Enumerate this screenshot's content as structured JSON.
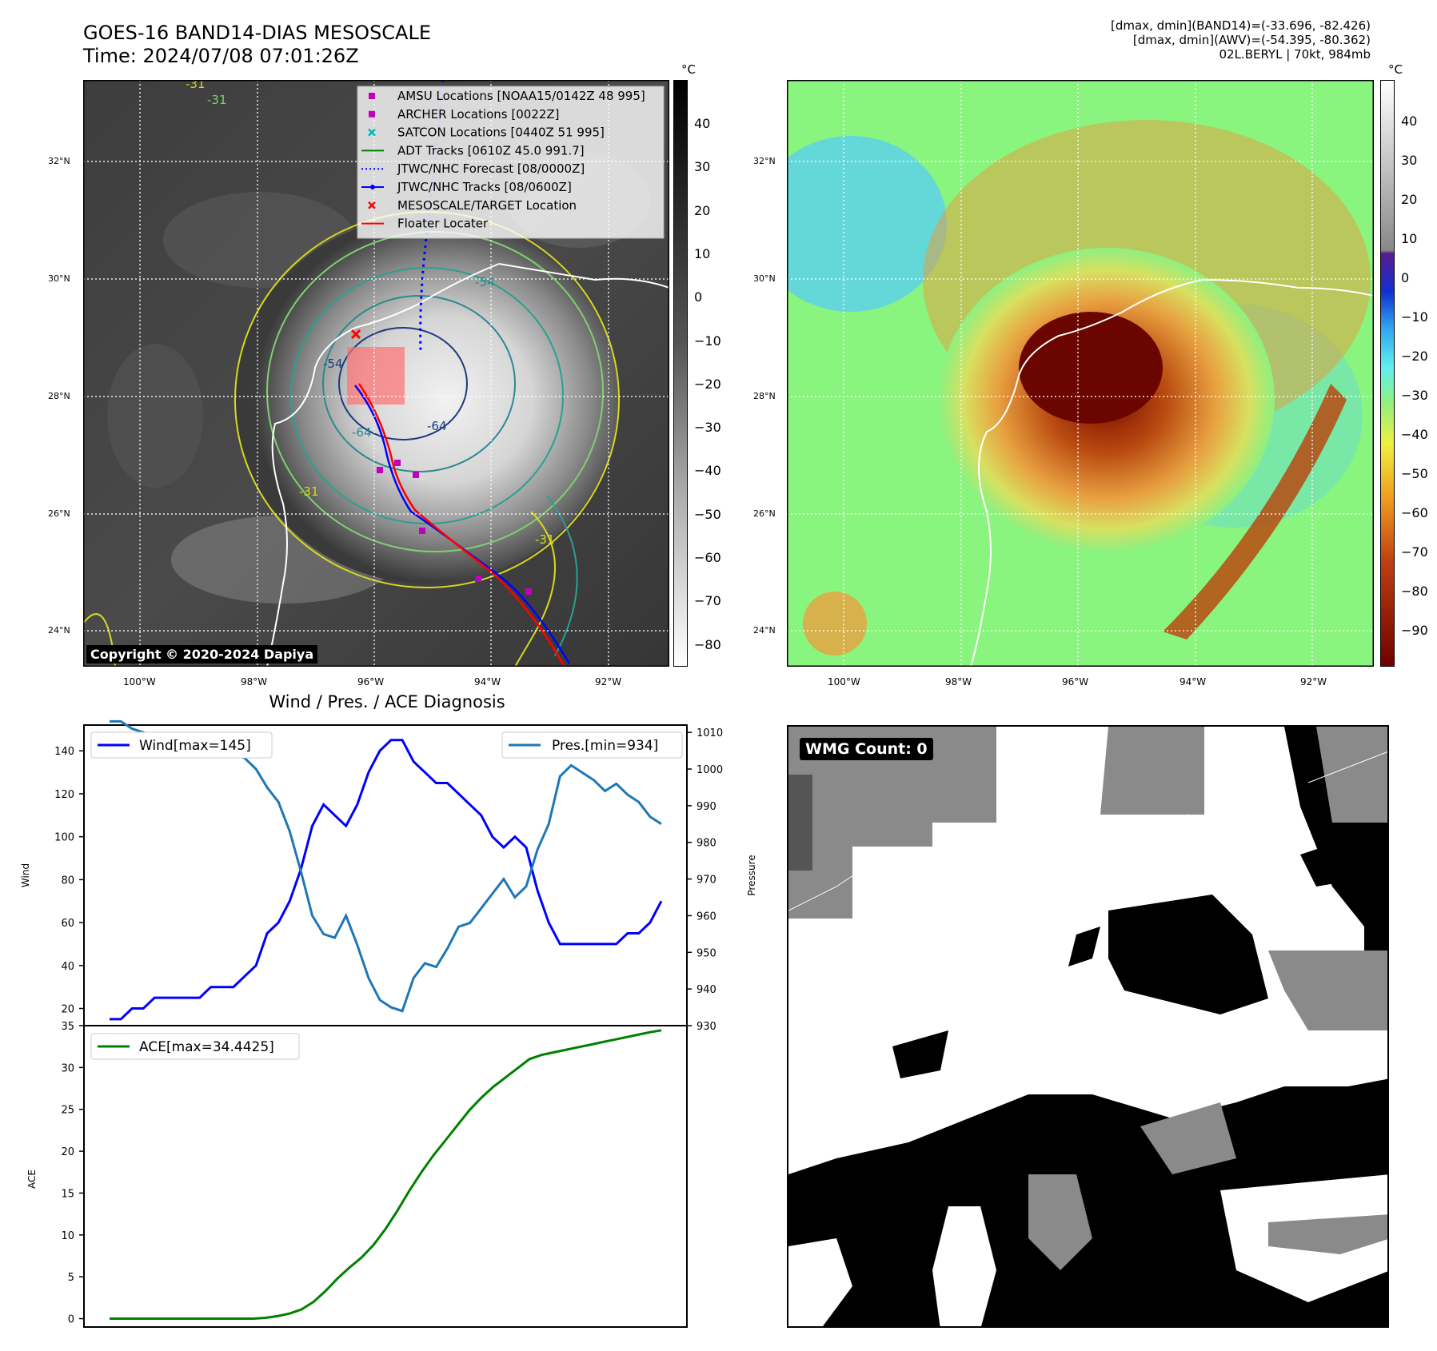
{
  "header": {
    "title_line1": "GOES-16 BAND14-DIAS MESOSCALE",
    "title_line2": "Time: 2024/07/08 07:01:26Z",
    "stats_line1": "[dmax, dmin](BAND14)=(-33.696, -82.426)",
    "stats_line2": "[dmax, dmin](AWV)=(-54.395, -80.362)",
    "stats_line3": "02L.BERYL | 70kt, 984mb"
  },
  "map_left": {
    "copyright": "Copyright © 2020-2024 Dapiya",
    "lat_labels": [
      "32°N",
      "30°N",
      "28°N",
      "26°N",
      "24°N"
    ],
    "lon_labels": [
      "100°W",
      "98°W",
      "96°W",
      "94°W",
      "92°W"
    ],
    "colorbar_unit": "°C",
    "colorbar_ticks": [
      "40",
      "30",
      "20",
      "10",
      "0",
      "−10",
      "−20",
      "−30",
      "−40",
      "−50",
      "−60",
      "−70",
      "−80"
    ],
    "contour_labels": [
      "-31",
      "-31",
      "-31",
      "-54",
      "-54",
      "-64",
      "-64",
      "-31"
    ],
    "legend": [
      {
        "label": "AMSU Locations [NOAA15/0142Z 48 995]",
        "color": "#c000c0",
        "marker": "square"
      },
      {
        "label": "ARCHER Locations [0022Z]",
        "color": "#c000c0",
        "marker": "square"
      },
      {
        "label": "SATCON Locations [0440Z 51 995]",
        "color": "#00b5b5",
        "marker": "x"
      },
      {
        "label": "ADT Tracks [0610Z 45.0 991.7]",
        "color": "#008000",
        "marker": "line"
      },
      {
        "label": "JTWC/NHC Forecast [08/0000Z]",
        "color": "#0000ff",
        "marker": "dotted"
      },
      {
        "label": "JTWC/NHC Tracks [08/0600Z]",
        "color": "#0000ff",
        "marker": "line-dot"
      },
      {
        "label": "MESOSCALE/TARGET Location",
        "color": "#ff0000",
        "marker": "x"
      },
      {
        "label": "Floater Locater",
        "color": "#ff0000",
        "marker": "line"
      }
    ]
  },
  "map_right": {
    "lat_labels": [
      "32°N",
      "30°N",
      "28°N",
      "26°N",
      "24°N"
    ],
    "lon_labels": [
      "100°W",
      "98°W",
      "96°W",
      "94°W",
      "92°W"
    ],
    "colorbar_unit": "°C",
    "colorbar_ticks": [
      "40",
      "30",
      "20",
      "10",
      "0",
      "−10",
      "−20",
      "−30",
      "−40",
      "−50",
      "−60",
      "−70",
      "−80",
      "−90"
    ]
  },
  "wmg": {
    "label": "WMG Count: 0"
  },
  "chart_data": [
    {
      "type": "line",
      "title": "Wind / Pres. / ACE Diagnosis",
      "ylabel": "Wind",
      "ylabel_right": "Pressure",
      "ylim": [
        12,
        152
      ],
      "ylim_right": [
        930,
        1012
      ],
      "yticks": [
        20,
        40,
        60,
        80,
        100,
        120,
        140
      ],
      "yticks_right": [
        930,
        940,
        950,
        960,
        970,
        980,
        990,
        1000,
        1010
      ],
      "series": [
        {
          "name": "Wind[max=145]",
          "color": "#0000ff",
          "axis": "left",
          "values": [
            15,
            15,
            20,
            20,
            25,
            25,
            25,
            25,
            25,
            30,
            30,
            30,
            35,
            40,
            55,
            60,
            70,
            85,
            105,
            115,
            110,
            105,
            115,
            130,
            140,
            145,
            145,
            135,
            130,
            125,
            125,
            120,
            115,
            110,
            100,
            95,
            100,
            95,
            75,
            60,
            50,
            50,
            50,
            50,
            50,
            50,
            55,
            55,
            60,
            70
          ]
        },
        {
          "name": "Pres.[min=934]",
          "color": "#1f77b4",
          "axis": "right",
          "values": [
            1013,
            1013,
            1011,
            1010,
            1009,
            1008,
            1007,
            1006,
            1006,
            1005,
            1004,
            1004,
            1003,
            1000,
            995,
            991,
            983,
            972,
            960,
            955,
            954,
            960,
            952,
            943,
            937,
            935,
            934,
            943,
            947,
            946,
            951,
            957,
            958,
            962,
            966,
            970,
            965,
            968,
            978,
            985,
            998,
            1001,
            999,
            997,
            994,
            996,
            993,
            991,
            987,
            985
          ]
        }
      ]
    },
    {
      "type": "line",
      "ylabel": "ACE",
      "ylim": [
        -1,
        35
      ],
      "yticks": [
        0,
        5,
        10,
        15,
        20,
        25,
        30,
        35
      ],
      "series": [
        {
          "name": "ACE[max=34.4425]",
          "color": "#008000",
          "values": [
            0,
            0,
            0,
            0,
            0,
            0,
            0,
            0,
            0,
            0,
            0,
            0,
            0,
            0.1,
            0.3,
            0.6,
            1.1,
            2.0,
            3.3,
            4.8,
            6.1,
            7.3,
            8.8,
            10.7,
            12.9,
            15.3,
            17.5,
            19.5,
            21.3,
            23.1,
            24.9,
            26.4,
            27.7,
            28.8,
            29.9,
            31.0,
            31.5,
            31.8,
            32.1,
            32.4,
            32.7,
            33.0,
            33.3,
            33.6,
            33.9,
            34.2,
            34.4425
          ]
        }
      ]
    }
  ]
}
